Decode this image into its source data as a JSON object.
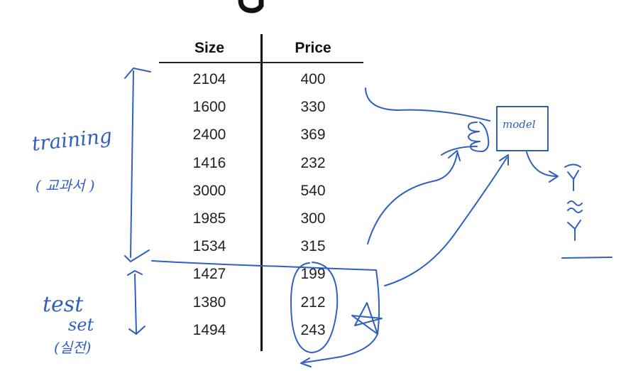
{
  "table": {
    "headers": [
      "Size",
      "Price"
    ],
    "rows": [
      [
        "2104",
        "400"
      ],
      [
        "1600",
        "330"
      ],
      [
        "2400",
        "369"
      ],
      [
        "1416",
        "232"
      ],
      [
        "3000",
        "540"
      ],
      [
        "1985",
        "300"
      ],
      [
        "1534",
        "315"
      ],
      [
        "1427",
        "199"
      ],
      [
        "1380",
        "212"
      ],
      [
        "1494",
        "243"
      ]
    ]
  },
  "annotations": {
    "training_label": "training",
    "training_note": "( 교과서 )",
    "test_label": "test",
    "set_label": "set",
    "test_note": "(실전)",
    "model_label": "model"
  },
  "colors": {
    "ink": "#2f5fbf",
    "text": "#222222"
  }
}
